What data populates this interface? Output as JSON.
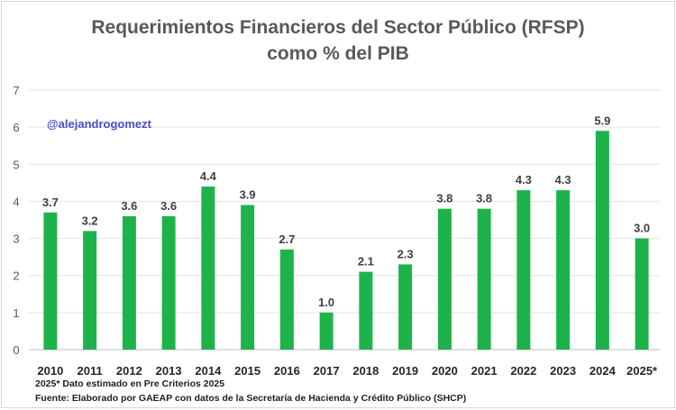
{
  "chart_data": {
    "type": "bar",
    "title_line1": "Requerimientos Financieros del Sector Público (RFSP)",
    "title_line2": "como % del PIB",
    "categories": [
      "2010",
      "2011",
      "2012",
      "2013",
      "2014",
      "2015",
      "2016",
      "2017",
      "2018",
      "2019",
      "2020",
      "2021",
      "2022",
      "2023",
      "2024",
      "2025*"
    ],
    "values": [
      3.7,
      3.2,
      3.6,
      3.6,
      4.4,
      3.9,
      2.7,
      1.0,
      2.1,
      2.3,
      3.8,
      3.8,
      4.3,
      4.3,
      5.9,
      3.0
    ],
    "data_labels": [
      "3.7",
      "3.2",
      "3.6",
      "3.6",
      "4.4",
      "3.9",
      "2.7",
      "1.0",
      "2.1",
      "2.3",
      "3.8",
      "3.8",
      "4.3",
      "4.3",
      "5.9",
      "3.0"
    ],
    "ylim": [
      0,
      7
    ],
    "yticks": [
      "0",
      "1",
      "2",
      "3",
      "4",
      "5",
      "6",
      "7"
    ],
    "grid": true,
    "bar_color": "#1db34a"
  },
  "annotation": "@alejandrogomezt",
  "footnote": "2025* Dato estimado en Pre Criterios 2025",
  "source": "Fuente: Elaborado por GAEAP con datos de la Secretaría de Hacienda y Crédito Público (SHCP)"
}
